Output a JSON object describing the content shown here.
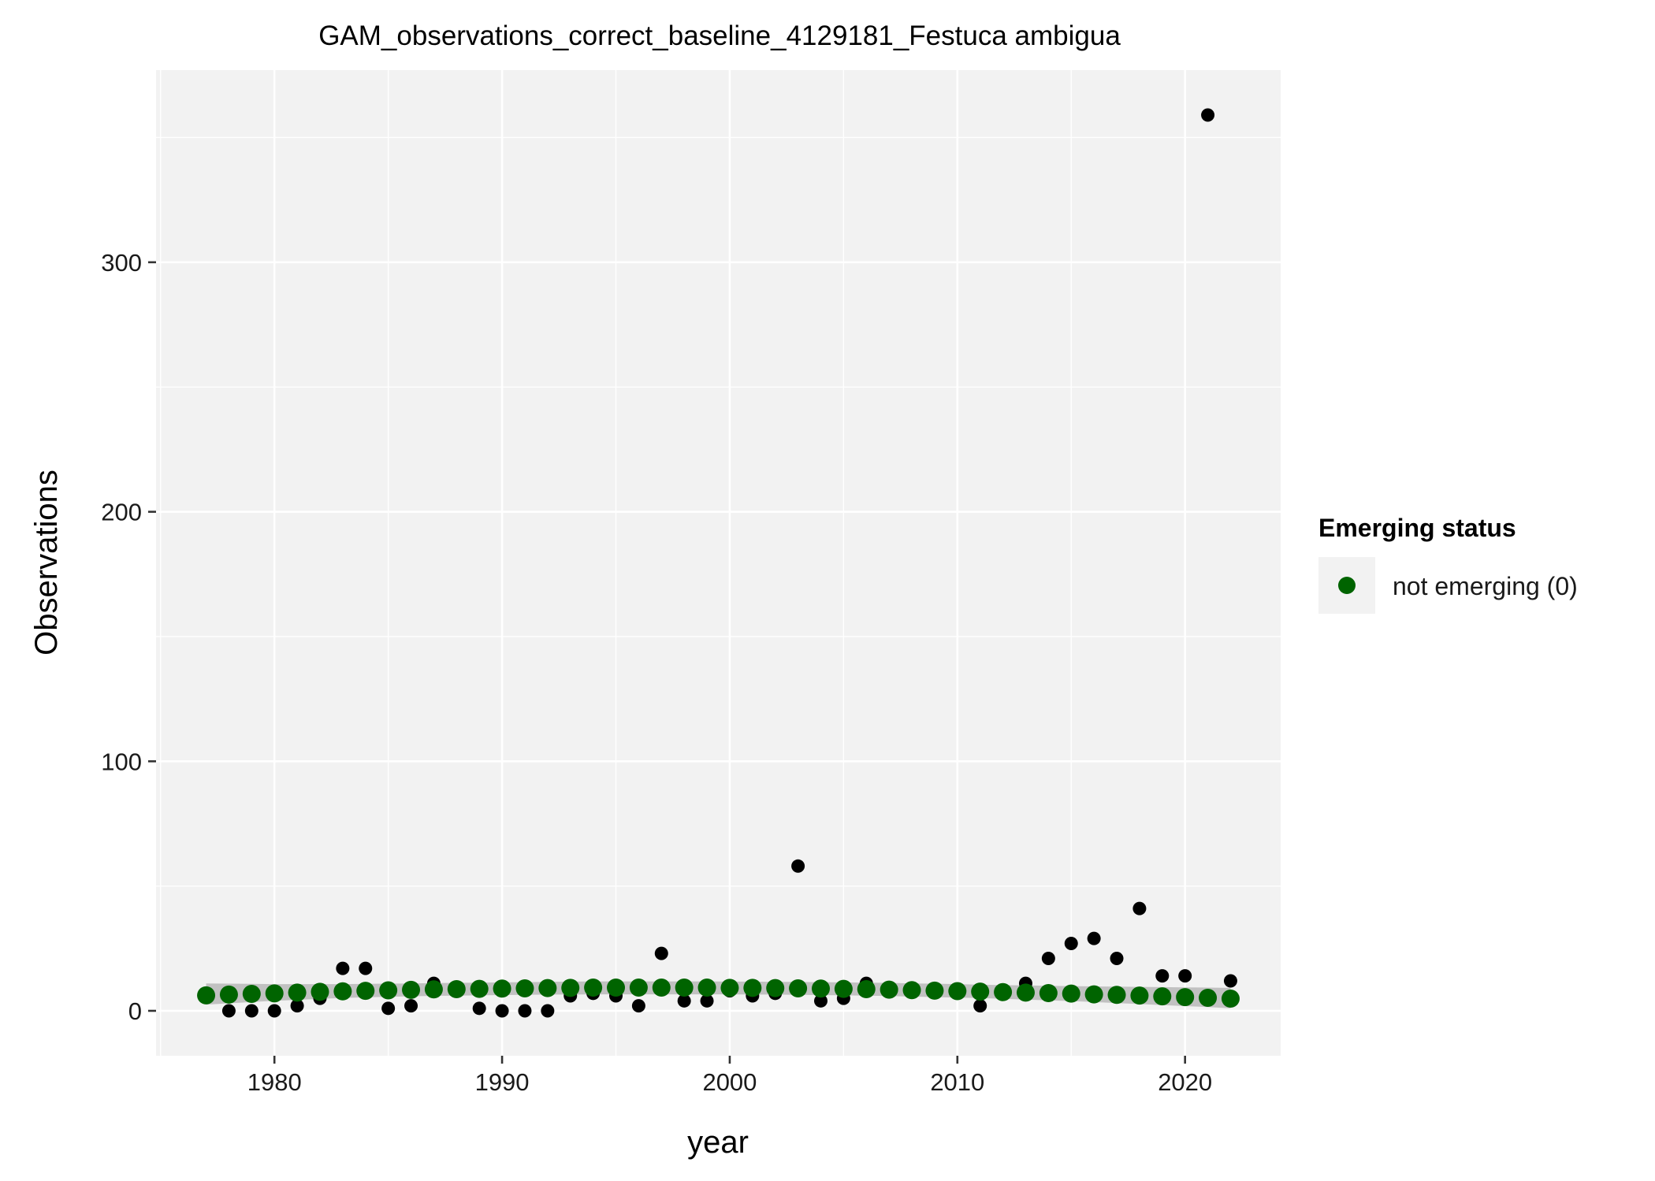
{
  "chart_data": {
    "type": "scatter",
    "title": "GAM_observations_correct_baseline_4129181_Festuca ambigua",
    "xlabel": "year",
    "ylabel": "Observations",
    "xlim": [
      1974.8,
      2024.2
    ],
    "ylim": [
      -18,
      377
    ],
    "x_ticks": [
      1980,
      1990,
      2000,
      2010,
      2020
    ],
    "x_tick_labels": [
      "1980",
      "1990",
      "2000",
      "2010",
      "2020"
    ],
    "y_ticks": [
      0,
      100,
      200,
      300
    ],
    "y_tick_labels": [
      "0",
      "100",
      "200",
      "300"
    ],
    "grid": true,
    "panel_background": "#f2f2f2",
    "grid_color": "#ffffff",
    "legend": {
      "title": "Emerging status",
      "position": "right",
      "entries": [
        {
          "label": "not emerging (0)",
          "color": "#006400"
        }
      ]
    },
    "series": [
      {
        "kind": "observed",
        "color": "#000000",
        "x": [
          1977,
          1978,
          1979,
          1980,
          1981,
          1982,
          1983,
          1984,
          1985,
          1986,
          1987,
          1988,
          1989,
          1990,
          1991,
          1992,
          1993,
          1994,
          1995,
          1996,
          1997,
          1998,
          1999,
          2000,
          2001,
          2002,
          2003,
          2004,
          2005,
          2006,
          2007,
          2008,
          2009,
          2010,
          2011,
          2012,
          2013,
          2014,
          2015,
          2016,
          2017,
          2018,
          2019,
          2020,
          2021,
          2022
        ],
        "y": [
          6,
          0,
          0,
          0,
          2,
          5,
          17,
          17,
          1,
          2,
          11,
          8,
          1,
          0,
          0,
          0,
          6,
          7,
          6,
          2,
          23,
          4,
          4,
          8,
          6,
          7,
          58,
          4,
          5,
          11,
          8,
          8,
          8,
          8,
          2,
          7,
          11,
          21,
          27,
          29,
          21,
          41,
          14,
          14,
          359,
          12
        ]
      },
      {
        "kind": "fitted",
        "name": "not emerging (0)",
        "color": "#006400",
        "x": [
          1977,
          1978,
          1979,
          1980,
          1981,
          1982,
          1983,
          1984,
          1985,
          1986,
          1987,
          1988,
          1989,
          1990,
          1991,
          1992,
          1993,
          1994,
          1995,
          1996,
          1997,
          1998,
          1999,
          2000,
          2001,
          2002,
          2003,
          2004,
          2005,
          2006,
          2007,
          2008,
          2009,
          2010,
          2011,
          2012,
          2013,
          2014,
          2015,
          2016,
          2017,
          2018,
          2019,
          2020,
          2021,
          2022
        ],
        "y": [
          6.2,
          6.5,
          6.8,
          7.0,
          7.3,
          7.6,
          7.8,
          8.0,
          8.2,
          8.4,
          8.6,
          8.7,
          8.8,
          8.9,
          9.0,
          9.1,
          9.2,
          9.3,
          9.3,
          9.3,
          9.3,
          9.3,
          9.3,
          9.2,
          9.2,
          9.1,
          9.0,
          8.9,
          8.8,
          8.7,
          8.5,
          8.3,
          8.1,
          7.9,
          7.7,
          7.5,
          7.3,
          7.1,
          6.9,
          6.6,
          6.4,
          6.1,
          5.8,
          5.5,
          5.2,
          4.9
        ],
        "ci_lower": [
          2.5,
          3.0,
          3.5,
          4.0,
          4.4,
          4.8,
          5.1,
          5.4,
          5.6,
          5.8,
          6.0,
          6.1,
          6.2,
          6.3,
          6.4,
          6.5,
          6.5,
          6.6,
          6.6,
          6.6,
          6.6,
          6.6,
          6.6,
          6.6,
          6.5,
          6.5,
          6.4,
          6.3,
          6.2,
          6.1,
          5.9,
          5.7,
          5.5,
          5.3,
          5.1,
          4.8,
          4.5,
          4.2,
          3.9,
          3.5,
          3.1,
          2.7,
          2.3,
          1.9,
          1.5,
          1.0
        ],
        "ci_upper": [
          11.0,
          10.9,
          10.8,
          10.7,
          10.7,
          10.7,
          10.7,
          10.8,
          10.9,
          11.0,
          11.1,
          11.2,
          11.3,
          11.4,
          11.5,
          11.6,
          11.7,
          11.8,
          11.8,
          11.8,
          11.8,
          11.8,
          11.8,
          11.7,
          11.7,
          11.6,
          11.6,
          11.5,
          11.4,
          11.3,
          11.2,
          11.0,
          10.9,
          10.7,
          10.5,
          10.3,
          10.2,
          10.0,
          9.9,
          9.8,
          9.7,
          9.6,
          9.5,
          9.4,
          9.3,
          9.2
        ]
      }
    ]
  }
}
